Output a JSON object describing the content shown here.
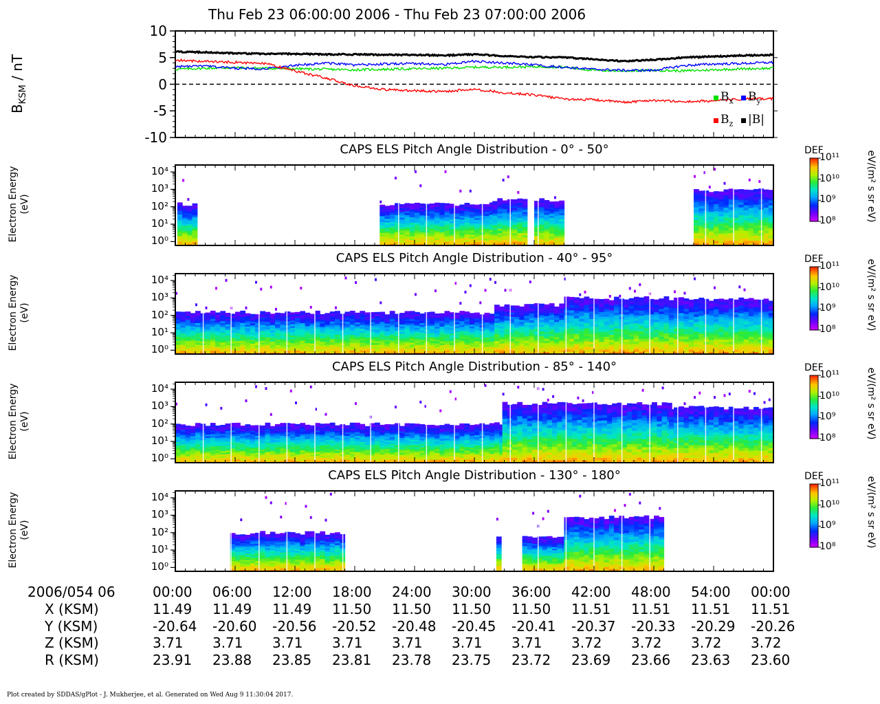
{
  "title": "Thu Feb 23 06:00:00 2006 - Thu Feb 23 07:00:00 2006",
  "footer": "Plot created by SDDAS/gPlot - J. Mukherjee, et al.  Generated on Wed Aug 9 11:30:04 2017.",
  "chart_data": [
    {
      "type": "line",
      "ylabel": "B_KSM / nT",
      "ylabel_main": "B",
      "ylabel_sub": "KSM",
      "ylabel_unit": " / nT",
      "ylim": [
        -10,
        10
      ],
      "yticks": [
        "10",
        "5",
        "0",
        "-5",
        "-10"
      ],
      "x_minutes": [
        0,
        3,
        6,
        9,
        12,
        15,
        18,
        21,
        24,
        27,
        30,
        33,
        36,
        39,
        42,
        45,
        48,
        51,
        54,
        57,
        60
      ],
      "zero_line": "dashed",
      "legend_position": "bottom-right",
      "series": [
        {
          "name": "B_x",
          "label_main": "B",
          "label_sub": "x",
          "color": "#00e000",
          "values": [
            2.8,
            3.0,
            3.1,
            3.0,
            2.9,
            2.8,
            2.7,
            2.8,
            2.9,
            3.0,
            3.2,
            3.2,
            3.3,
            3.2,
            2.6,
            2.5,
            2.6,
            2.5,
            2.7,
            2.9,
            3.0
          ]
        },
        {
          "name": "B_y",
          "label_main": "B",
          "label_sub": "y",
          "color": "#0000ff",
          "values": [
            3.3,
            3.4,
            3.0,
            2.9,
            3.5,
            4.0,
            3.6,
            3.8,
            3.9,
            3.7,
            4.3,
            4.0,
            3.6,
            3.2,
            2.8,
            2.6,
            2.6,
            3.5,
            3.8,
            3.9,
            4.1
          ]
        },
        {
          "name": "B_z",
          "label_main": "B",
          "label_sub": "z",
          "color": "#ff0000",
          "values": [
            4.5,
            4.3,
            4.1,
            3.9,
            2.5,
            1.2,
            -0.3,
            -1.0,
            -1.2,
            -1.4,
            -0.9,
            -1.6,
            -2.0,
            -2.8,
            -2.9,
            -3.4,
            -3.0,
            -3.3,
            -3.1,
            -2.8,
            -2.7
          ]
        },
        {
          "name": "|B|",
          "label_main": "|B|",
          "label_sub": "",
          "color": "#000000",
          "values": [
            6.1,
            6.0,
            5.8,
            5.7,
            5.7,
            5.6,
            5.6,
            5.5,
            5.5,
            5.4,
            5.6,
            5.3,
            5.1,
            5.0,
            4.7,
            4.3,
            4.6,
            5.0,
            5.2,
            5.4,
            5.5
          ]
        }
      ]
    },
    {
      "type": "heatmap",
      "title": "CAPS ELS Pitch Angle Distribution - 0° - 50°",
      "ylabel": "Electron Energy (eV)",
      "yscale": "log",
      "ylim": [
        0.6,
        25000
      ],
      "colorbar": {
        "label": "DEF",
        "unit": "eV/(m² s sr eV)",
        "range": [
          100000000.0,
          100000000000.0
        ],
        "scale": "log"
      },
      "blocks": [
        {
          "t": [
            0.2,
            2.0
          ],
          "cut_eV": 150
        },
        {
          "t": [
            20.5,
            31.8
          ],
          "cut_eV": 150
        },
        {
          "t": [
            31.8,
            35.0
          ],
          "cut_eV": 250
        },
        {
          "t": [
            36.0,
            38.6
          ],
          "cut_eV": 250
        },
        {
          "t": [
            52.0,
            60.0
          ],
          "cut_eV": 900
        }
      ]
    },
    {
      "type": "heatmap",
      "title": "CAPS ELS Pitch Angle Distribution - 40° - 95°",
      "ylabel": "Electron Energy (eV)",
      "yscale": "log",
      "ylim": [
        0.6,
        25000
      ],
      "colorbar": {
        "label": "DEF",
        "unit": "eV/(m² s sr eV)",
        "range": [
          100000000.0,
          100000000000.0
        ],
        "scale": "log"
      },
      "blocks": [
        {
          "t": [
            0.0,
            32.0
          ],
          "cut_eV": 150
        },
        {
          "t": [
            32.0,
            39.0
          ],
          "cut_eV": 400
        },
        {
          "t": [
            39.0,
            49.5
          ],
          "cut_eV": 1000
        },
        {
          "t": [
            49.5,
            60.0
          ],
          "cut_eV": 900
        }
      ]
    },
    {
      "type": "heatmap",
      "title": "CAPS ELS Pitch Angle Distribution - 85° - 140°",
      "ylabel": "Electron Energy (eV)",
      "yscale": "log",
      "ylim": [
        0.6,
        25000
      ],
      "colorbar": {
        "label": "DEF",
        "unit": "eV/(m² s sr eV)",
        "range": [
          100000000.0,
          100000000000.0
        ],
        "scale": "log"
      },
      "blocks": [
        {
          "t": [
            0.0,
            32.8
          ],
          "cut_eV": 100
        },
        {
          "t": [
            32.8,
            49.5
          ],
          "cut_eV": 1500
        },
        {
          "t": [
            49.5,
            60.0
          ],
          "cut_eV": 900
        }
      ]
    },
    {
      "type": "heatmap",
      "title": "CAPS ELS Pitch Angle Distribution - 130° - 180°",
      "ylabel": "Electron Energy (eV)",
      "yscale": "log",
      "ylim": [
        0.6,
        25000
      ],
      "colorbar": {
        "label": "DEF",
        "unit": "eV/(m² s sr eV)",
        "range": [
          100000000.0,
          100000000000.0
        ],
        "scale": "log"
      },
      "blocks": [
        {
          "t": [
            5.5,
            16.6
          ],
          "cut_eV": 100
        },
        {
          "t": [
            32.2,
            32.7
          ],
          "cut_eV": 60
        },
        {
          "t": [
            34.8,
            39.0
          ],
          "cut_eV": 60
        },
        {
          "t": [
            39.0,
            49.0
          ],
          "cut_eV": 800
        }
      ]
    }
  ],
  "panel_ytick_labels": [
    "10⁴",
    "10³",
    "10²",
    "10¹",
    "10⁰"
  ],
  "colorbar_tick_labels": [
    "10¹¹",
    "10¹⁰",
    "10⁹",
    "10⁸"
  ],
  "ephemeris": {
    "header": "2006/054 06",
    "times": [
      "00:00",
      "06:00",
      "12:00",
      "18:00",
      "24:00",
      "30:00",
      "36:00",
      "42:00",
      "48:00",
      "54:00",
      "00:00"
    ],
    "rows": [
      {
        "label": "X (KSM)",
        "values": [
          "11.49",
          "11.49",
          "11.49",
          "11.50",
          "11.50",
          "11.50",
          "11.50",
          "11.51",
          "11.51",
          "11.51",
          "11.51"
        ]
      },
      {
        "label": "Y (KSM)",
        "values": [
          "-20.64",
          "-20.60",
          "-20.56",
          "-20.52",
          "-20.48",
          "-20.45",
          "-20.41",
          "-20.37",
          "-20.33",
          "-20.29",
          "-20.26"
        ]
      },
      {
        "label": "Z (KSM)",
        "values": [
          "3.71",
          "3.71",
          "3.71",
          "3.71",
          "3.71",
          "3.71",
          "3.71",
          "3.72",
          "3.72",
          "3.72",
          "3.72"
        ]
      },
      {
        "label": "R (KSM)",
        "values": [
          "23.91",
          "23.88",
          "23.85",
          "23.81",
          "23.78",
          "23.75",
          "23.72",
          "23.69",
          "23.66",
          "23.63",
          "23.60"
        ]
      }
    ]
  }
}
